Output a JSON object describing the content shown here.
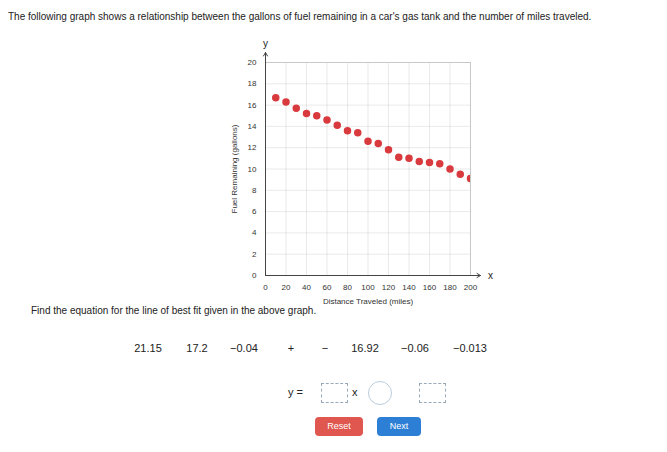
{
  "question": "The following graph shows a relationship between the gallons of fuel remaining in a car's gas tank and the number of miles traveled.",
  "chart_data": {
    "type": "scatter",
    "xlabel": "Distance Traveled (miles)",
    "ylabel": "Fuel Remaining (gallons)",
    "x_variable": "x",
    "y_variable": "y",
    "x": [
      10,
      20,
      30,
      40,
      50,
      60,
      70,
      80,
      90,
      100,
      110,
      120,
      130,
      140,
      150,
      160,
      170,
      180,
      190,
      200
    ],
    "values": [
      16.7,
      16.3,
      15.7,
      15.2,
      15.0,
      14.6,
      14.1,
      13.6,
      13.4,
      12.6,
      12.4,
      11.8,
      11.1,
      11.0,
      10.7,
      10.6,
      10.5,
      10.0,
      9.5,
      9.1
    ],
    "color": "#d93a3e",
    "marker": "circle",
    "xlim": [
      0,
      200
    ],
    "ylim": [
      0,
      20
    ],
    "xticks": [
      0,
      20,
      40,
      60,
      80,
      100,
      120,
      140,
      160,
      180,
      200
    ],
    "yticks": [
      0,
      2,
      4,
      6,
      8,
      10,
      12,
      14,
      16,
      18,
      20
    ],
    "grid": true
  },
  "prompt": "Find the equation for the line of best fit given in the above graph.",
  "choices": [
    "21.15",
    "17.2",
    "−0.04",
    "+",
    "−",
    "16.92",
    "−0.06",
    "−0.013"
  ],
  "equation": {
    "lhs": "y =",
    "variable": "x"
  },
  "buttons": [
    "Reset",
    "Next"
  ]
}
